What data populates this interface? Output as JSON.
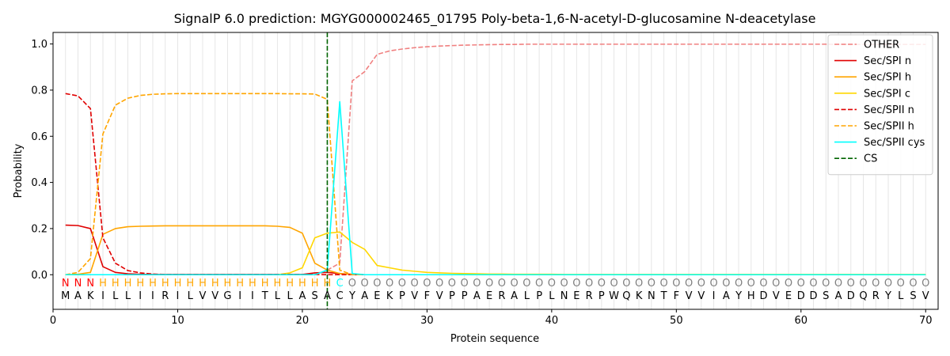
{
  "chart_data": {
    "type": "line",
    "title": "SignalP 6.0 prediction: MGYG000002465_01795 Poly-beta-1,6-N-acetyl-D-glucosamine N-deacetylase",
    "xlabel": "Protein sequence",
    "ylabel": "Probability",
    "xlim": [
      0,
      71
    ],
    "ylim": [
      -0.15,
      1.05
    ],
    "xticks": [
      0,
      10,
      20,
      30,
      40,
      50,
      60,
      70
    ],
    "yticks": [
      0.0,
      0.2,
      0.4,
      0.6,
      0.8,
      1.0
    ],
    "legend_position": "top-right",
    "sequence": [
      "M",
      "A",
      "K",
      "I",
      "L",
      "L",
      "I",
      "I",
      "R",
      "I",
      "L",
      "V",
      "V",
      "G",
      "I",
      "I",
      "T",
      "L",
      "L",
      "A",
      "S",
      "A",
      "C",
      "Y",
      "A",
      "E",
      "K",
      "P",
      "V",
      "F",
      "V",
      "P",
      "P",
      "A",
      "E",
      "R",
      "A",
      "L",
      "P",
      "L",
      "N",
      "E",
      "R",
      "P",
      "W",
      "Q",
      "K",
      "N",
      "T",
      "F",
      "V",
      "V",
      "I",
      "A",
      "Y",
      "H",
      "D",
      "V",
      "E",
      "D",
      "D",
      "S",
      "A",
      "D",
      "Q",
      "R",
      "Y",
      "L",
      "S",
      "V"
    ],
    "region_labels": [
      "N",
      "N",
      "N",
      "H",
      "H",
      "H",
      "H",
      "H",
      "H",
      "H",
      "H",
      "H",
      "H",
      "H",
      "H",
      "H",
      "H",
      "H",
      "H",
      "H",
      "H",
      "H",
      "C",
      "O",
      "O",
      "O",
      "O",
      "O",
      "O",
      "O",
      "O",
      "O",
      "O",
      "O",
      "O",
      "O",
      "O",
      "O",
      "O",
      "O",
      "O",
      "O",
      "O",
      "O",
      "O",
      "O",
      "O",
      "O",
      "O",
      "O",
      "O",
      "O",
      "O",
      "O",
      "O",
      "O",
      "O",
      "O",
      "O",
      "O",
      "O",
      "O",
      "O",
      "O",
      "O",
      "O",
      "O",
      "O",
      "O",
      "O"
    ],
    "region_colors": {
      "N": "#ff0000",
      "H": "#ffa500",
      "C": "#00ffff",
      "O": "#808080"
    },
    "cleavage_site": 22,
    "series": [
      {
        "name": "OTHER",
        "color": "#f08080",
        "dash": "dashed",
        "values": [
          0.0,
          0.0,
          0.0,
          0.0,
          0.0,
          0.0,
          0.0,
          0.0,
          0.0,
          0.0,
          0.0,
          0.0,
          0.0,
          0.0,
          0.0,
          0.0,
          0.0,
          0.0,
          0.0,
          0.0,
          0.0,
          0.02,
          0.05,
          0.84,
          0.88,
          0.955,
          0.97,
          0.978,
          0.984,
          0.988,
          0.991,
          0.993,
          0.995,
          0.996,
          0.997,
          0.998,
          0.998,
          0.999,
          0.999,
          0.999,
          0.999,
          0.999,
          0.999,
          0.999,
          0.999,
          0.999,
          0.999,
          0.999,
          0.999,
          0.999,
          0.999,
          0.999,
          0.999,
          0.999,
          0.999,
          0.999,
          0.999,
          0.999,
          0.999,
          0.999,
          0.999,
          0.999,
          0.998,
          0.998,
          0.998,
          0.998,
          0.998,
          0.998,
          0.998,
          0.998
        ]
      },
      {
        "name": "Sec/SPI n",
        "color": "#e00000",
        "dash": "solid",
        "values": [
          0.215,
          0.213,
          0.2,
          0.035,
          0.01,
          0.004,
          0.002,
          0.001,
          0.001,
          0.001,
          0.001,
          0.001,
          0.001,
          0.001,
          0.001,
          0.001,
          0.001,
          0.001,
          0.001,
          0.001,
          0.008,
          0.01,
          0.005,
          0.002,
          0.0,
          0.0,
          0.0,
          0.0,
          0.0,
          0.0,
          0.0,
          0.0,
          0.0,
          0.0,
          0.0,
          0.0,
          0.0,
          0.0,
          0.0,
          0.0,
          0.0,
          0.0,
          0.0,
          0.0,
          0.0,
          0.0,
          0.0,
          0.0,
          0.0,
          0.0,
          0.0,
          0.0,
          0.0,
          0.0,
          0.0,
          0.0,
          0.0,
          0.0,
          0.0,
          0.0,
          0.0,
          0.0,
          0.0,
          0.0,
          0.0,
          0.0,
          0.0,
          0.0,
          0.0,
          0.0
        ]
      },
      {
        "name": "Sec/SPI h",
        "color": "#ffa500",
        "dash": "solid",
        "values": [
          0.0,
          0.002,
          0.01,
          0.175,
          0.2,
          0.208,
          0.21,
          0.211,
          0.212,
          0.212,
          0.212,
          0.212,
          0.212,
          0.212,
          0.212,
          0.212,
          0.212,
          0.21,
          0.205,
          0.18,
          0.05,
          0.02,
          0.005,
          0.001,
          0.0,
          0.0,
          0.0,
          0.0,
          0.0,
          0.0,
          0.0,
          0.0,
          0.0,
          0.0,
          0.0,
          0.0,
          0.0,
          0.0,
          0.0,
          0.0,
          0.0,
          0.0,
          0.0,
          0.0,
          0.0,
          0.0,
          0.0,
          0.0,
          0.0,
          0.0,
          0.0,
          0.0,
          0.0,
          0.0,
          0.0,
          0.0,
          0.0,
          0.0,
          0.0,
          0.0,
          0.0,
          0.0,
          0.0,
          0.0,
          0.0,
          0.0,
          0.0,
          0.0,
          0.0,
          0.0
        ]
      },
      {
        "name": "Sec/SPI c",
        "color": "#ffd700",
        "dash": "solid",
        "values": [
          0.0,
          0.0,
          0.0,
          0.0,
          0.0,
          0.0,
          0.0,
          0.0,
          0.0,
          0.0,
          0.0,
          0.0,
          0.0,
          0.0,
          0.0,
          0.0,
          0.0,
          0.0,
          0.008,
          0.03,
          0.16,
          0.18,
          0.185,
          0.14,
          0.11,
          0.04,
          0.03,
          0.02,
          0.015,
          0.01,
          0.008,
          0.006,
          0.005,
          0.004,
          0.003,
          0.003,
          0.002,
          0.002,
          0.002,
          0.002,
          0.001,
          0.001,
          0.001,
          0.001,
          0.001,
          0.001,
          0.001,
          0.001,
          0.001,
          0.001,
          0.001,
          0.001,
          0.001,
          0.001,
          0.001,
          0.001,
          0.001,
          0.001,
          0.001,
          0.001,
          0.001,
          0.001,
          0.001,
          0.001,
          0.001,
          0.001,
          0.001,
          0.001,
          0.001,
          0.001
        ]
      },
      {
        "name": "Sec/SPII n",
        "color": "#e00000",
        "dash": "dashed",
        "values": [
          0.785,
          0.775,
          0.72,
          0.16,
          0.05,
          0.018,
          0.008,
          0.003,
          0.001,
          0.001,
          0.001,
          0.001,
          0.001,
          0.001,
          0.001,
          0.001,
          0.001,
          0.001,
          0.001,
          0.001,
          0.001,
          0.0,
          0.0,
          0.0,
          0.0,
          0.0,
          0.0,
          0.0,
          0.0,
          0.0,
          0.0,
          0.0,
          0.0,
          0.0,
          0.0,
          0.0,
          0.0,
          0.0,
          0.0,
          0.0,
          0.0,
          0.0,
          0.0,
          0.0,
          0.0,
          0.0,
          0.0,
          0.0,
          0.0,
          0.0,
          0.0,
          0.0,
          0.0,
          0.0,
          0.0,
          0.0,
          0.0,
          0.0,
          0.0,
          0.0,
          0.0,
          0.0,
          0.0,
          0.0,
          0.0,
          0.0,
          0.0,
          0.0,
          0.0,
          0.0
        ]
      },
      {
        "name": "Sec/SPII h",
        "color": "#ffa500",
        "dash": "dashed",
        "values": [
          0.0,
          0.01,
          0.07,
          0.61,
          0.735,
          0.765,
          0.777,
          0.782,
          0.784,
          0.785,
          0.785,
          0.785,
          0.785,
          0.785,
          0.785,
          0.785,
          0.785,
          0.785,
          0.784,
          0.784,
          0.783,
          0.76,
          0.02,
          0.0,
          0.0,
          0.0,
          0.0,
          0.0,
          0.0,
          0.0,
          0.0,
          0.0,
          0.0,
          0.0,
          0.0,
          0.0,
          0.0,
          0.0,
          0.0,
          0.0,
          0.0,
          0.0,
          0.0,
          0.0,
          0.0,
          0.0,
          0.0,
          0.0,
          0.0,
          0.0,
          0.0,
          0.0,
          0.0,
          0.0,
          0.0,
          0.0,
          0.0,
          0.0,
          0.0,
          0.0,
          0.0,
          0.0,
          0.0,
          0.0,
          0.0,
          0.0,
          0.0,
          0.0,
          0.0,
          0.0
        ]
      },
      {
        "name": "Sec/SPII cys",
        "color": "#00ffff",
        "dash": "solid",
        "values": [
          0.0,
          0.0,
          0.0,
          0.0,
          0.0,
          0.0,
          0.0,
          0.0,
          0.0,
          0.0,
          0.0,
          0.0,
          0.0,
          0.0,
          0.0,
          0.0,
          0.0,
          0.0,
          0.0,
          0.0,
          0.0,
          0.02,
          0.75,
          0.005,
          0.0,
          0.0,
          0.0,
          0.0,
          0.0,
          0.0,
          0.0,
          0.0,
          0.0,
          0.0,
          0.0,
          0.0,
          0.0,
          0.0,
          0.0,
          0.0,
          0.0,
          0.0,
          0.0,
          0.0,
          0.0,
          0.0,
          0.0,
          0.0,
          0.0,
          0.0,
          0.0,
          0.0,
          0.0,
          0.0,
          0.0,
          0.0,
          0.0,
          0.0,
          0.0,
          0.0,
          0.0,
          0.0,
          0.0,
          0.0,
          0.0,
          0.0,
          0.0,
          0.0,
          0.0,
          0.0
        ]
      }
    ],
    "cs_legend": {
      "name": "CS",
      "color": "#006400",
      "dash": "dashed"
    }
  }
}
